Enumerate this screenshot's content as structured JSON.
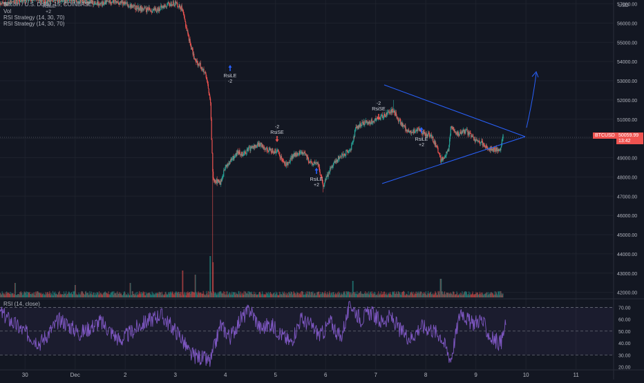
{
  "header": {
    "symbol_line": "Bitcoin / U.S. Dollar, 15, COINBASE",
    "vol_label": "Vol",
    "strategy_line_1": "RSI Strategy (14, 30, 70)",
    "strategy_line_2": "RSI Strategy (14, 30, 70)",
    "overlap_labels": [
      "RsiLE",
      "+2"
    ]
  },
  "price_axis": {
    "currency": "USD",
    "current_price_ticker": "BTCUSD",
    "current_price": "50059.99",
    "countdown": "13:42"
  },
  "rsi_pane": {
    "title": "RSI (14, close)"
  },
  "colors": {
    "background": "#131722",
    "up_candle": "#26a69a",
    "down_candle": "#ef5350",
    "rsi_line": "#7e57c2",
    "trendline": "#2962ff",
    "axis_text": "#b2b5be",
    "price_tag": "#ef5350"
  },
  "chart_data": [
    {
      "type": "candlestick",
      "title": "Bitcoin / U.S. Dollar, 15, COINBASE",
      "x_tick_labels": [
        "30",
        "Dec",
        "2",
        "3",
        "4",
        "5",
        "6",
        "7",
        "8",
        "9",
        "10",
        "11"
      ],
      "y_tick_labels": [
        "57000.00",
        "56000.00",
        "55000.00",
        "54000.00",
        "53000.00",
        "52000.00",
        "51000.00",
        "50000.00",
        "49000.00",
        "48000.00",
        "47000.00",
        "46000.00",
        "45000.00",
        "44000.00",
        "43000.00",
        "42000.00"
      ],
      "ylim": [
        41700,
        57200
      ],
      "xlim": [
        0,
        12.25
      ],
      "close_path": [
        [
          0.0,
          56950
        ],
        [
          0.3,
          57120
        ],
        [
          0.6,
          57200
        ],
        [
          0.9,
          57150
        ],
        [
          1.2,
          57200
        ],
        [
          1.5,
          57180
        ],
        [
          1.8,
          57100
        ],
        [
          2.0,
          56950
        ],
        [
          2.2,
          57150
        ],
        [
          2.5,
          57000
        ],
        [
          2.7,
          56800
        ],
        [
          2.9,
          56700
        ],
        [
          3.1,
          56650
        ],
        [
          3.3,
          56900
        ],
        [
          3.5,
          57050
        ],
        [
          3.62,
          56800
        ],
        [
          3.7,
          56000
        ],
        [
          3.8,
          54900
        ],
        [
          3.9,
          54000
        ],
        [
          4.0,
          53800
        ],
        [
          4.1,
          53300
        ],
        [
          4.15,
          52700
        ],
        [
          4.2,
          51900
        ],
        [
          4.25,
          48000
        ],
        [
          4.3,
          47800
        ],
        [
          4.4,
          47700
        ],
        [
          4.5,
          48500
        ],
        [
          4.6,
          48800
        ],
        [
          4.75,
          49300
        ],
        [
          4.85,
          49200
        ],
        [
          5.0,
          49500
        ],
        [
          5.2,
          49700
        ],
        [
          5.35,
          49400
        ],
        [
          5.55,
          49300
        ],
        [
          5.7,
          48600
        ],
        [
          5.85,
          49100
        ],
        [
          6.05,
          49300
        ],
        [
          6.2,
          48700
        ],
        [
          6.35,
          48700
        ],
        [
          6.45,
          47500
        ],
        [
          6.6,
          48500
        ],
        [
          6.8,
          49100
        ],
        [
          7.0,
          49400
        ],
        [
          7.1,
          50500
        ],
        [
          7.25,
          50800
        ],
        [
          7.45,
          50900
        ],
        [
          7.6,
          51100
        ],
        [
          7.75,
          51300
        ],
        [
          7.85,
          51500
        ],
        [
          7.95,
          51000
        ],
        [
          8.1,
          50500
        ],
        [
          8.2,
          50300
        ],
        [
          8.35,
          50500
        ],
        [
          8.5,
          50200
        ],
        [
          8.6,
          50200
        ],
        [
          8.75,
          49300
        ],
        [
          8.8,
          48900
        ],
        [
          8.95,
          49300
        ],
        [
          9.0,
          50600
        ],
        [
          9.15,
          50200
        ],
        [
          9.3,
          50400
        ],
        [
          9.45,
          50000
        ],
        [
          9.6,
          49800
        ],
        [
          9.75,
          49500
        ],
        [
          9.9,
          49400
        ],
        [
          10.0,
          49500
        ],
        [
          10.05,
          50300
        ]
      ],
      "wick_extremes": [
        [
          4.25,
          42000
        ],
        [
          4.2,
          51700
        ],
        [
          6.45,
          47200
        ],
        [
          8.8,
          48700
        ],
        [
          7.85,
          52000
        ]
      ]
    },
    {
      "type": "bar",
      "name": "Vol",
      "xlim": [
        0,
        12.25
      ],
      "spikes": [
        [
          4.2,
          1.0
        ],
        [
          4.25,
          0.85
        ],
        [
          3.65,
          0.65
        ],
        [
          3.9,
          0.55
        ],
        [
          0.3,
          0.35
        ],
        [
          1.5,
          0.3
        ],
        [
          2.6,
          0.35
        ],
        [
          7.05,
          0.4
        ],
        [
          8.8,
          0.45
        ]
      ],
      "baseline_level": 0.12
    },
    {
      "type": "line",
      "title": "RSI (14, close)",
      "y_tick_labels": [
        "70.00",
        "60.00",
        "50.00",
        "40.00",
        "30.00",
        "20.00"
      ],
      "ylim": [
        18,
        76
      ],
      "bands": [
        30,
        50,
        70
      ],
      "x": [
        0.0,
        0.4,
        0.8,
        1.2,
        1.6,
        2.0,
        2.4,
        2.8,
        3.2,
        3.6,
        3.8,
        4.0,
        4.2,
        4.4,
        4.6,
        4.8,
        5.0,
        5.2,
        5.4,
        5.6,
        5.8,
        6.0,
        6.2,
        6.4,
        6.6,
        6.8,
        7.0,
        7.2,
        7.4,
        7.6,
        7.8,
        8.0,
        8.2,
        8.4,
        8.6,
        8.8,
        9.0,
        9.2,
        9.4,
        9.6,
        9.8,
        10.0,
        10.1
      ],
      "values": [
        66,
        52,
        40,
        60,
        48,
        58,
        42,
        55,
        64,
        46,
        30,
        28,
        24,
        55,
        45,
        60,
        68,
        52,
        56,
        48,
        40,
        60,
        55,
        46,
        58,
        44,
        73,
        60,
        66,
        58,
        62,
        50,
        44,
        54,
        52,
        46,
        26,
        68,
        56,
        60,
        44,
        40,
        56
      ]
    }
  ],
  "annotations": [
    {
      "id": "rsile-1",
      "text_top": "RsiLE",
      "text_bottom": "-2"
    },
    {
      "id": "rsise-1",
      "text_top": "-2",
      "text_bottom": "RsiSE"
    },
    {
      "id": "rsile-2",
      "text_top": "RsiLE",
      "text_bottom": "+2"
    },
    {
      "id": "rsise-2",
      "text_top": "-2",
      "text_bottom": "RsiSE"
    },
    {
      "id": "rsile-3",
      "text_top": "RsiLE",
      "text_bottom": "+2"
    }
  ]
}
